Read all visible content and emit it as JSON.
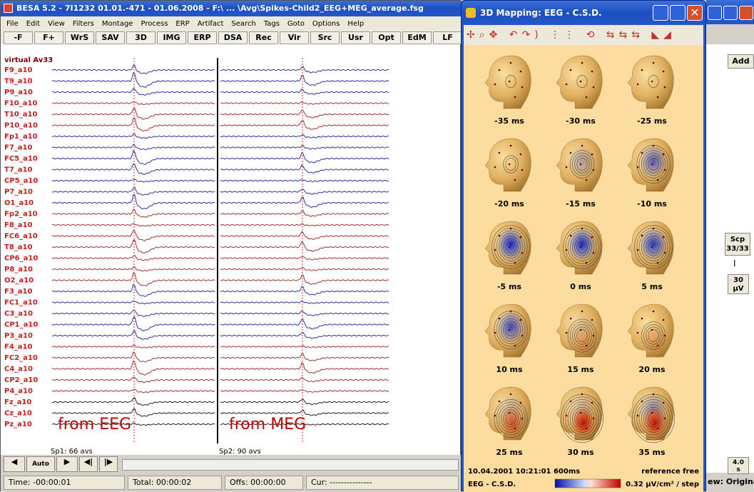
{
  "main_window": {
    "title": "BESA 5.2 - 7I1232 01.01.-471 - 01.06.2008 - F:\\ ... \\Avg\\Spikes-Child2_EEG+MEG_average.fsg",
    "menu": [
      "File",
      "Edit",
      "View",
      "Filters",
      "Montage",
      "Process",
      "ERP",
      "Artifact",
      "Search",
      "Tags",
      "Goto",
      "Options",
      "Help"
    ],
    "toolbar": [
      "-F",
      "F+",
      "WrS",
      "SAV",
      "3D",
      "IMG",
      "ERP",
      "DSA",
      "Rec",
      "Vir",
      "Src",
      "Usr",
      "Opt",
      "EdM",
      "LF"
    ],
    "montage_label": "virtual Av33",
    "channels": [
      {
        "name": "F9_a10",
        "color": "#3030a0"
      },
      {
        "name": "T9_a10",
        "color": "#3030a0"
      },
      {
        "name": "P9_a10",
        "color": "#3030a0"
      },
      {
        "name": "F10_a10",
        "color": "#a03030"
      },
      {
        "name": "T10_a10",
        "color": "#a03030"
      },
      {
        "name": "P10_a10",
        "color": "#a03030"
      },
      {
        "name": "Fp1_a10",
        "color": "#3030a0"
      },
      {
        "name": "F7_a10",
        "color": "#3030a0"
      },
      {
        "name": "FC5_a10",
        "color": "#3030a0"
      },
      {
        "name": "T7_a10",
        "color": "#3030a0"
      },
      {
        "name": "CP5_a10",
        "color": "#3030a0"
      },
      {
        "name": "P7_a10",
        "color": "#3030a0"
      },
      {
        "name": "O1_a10",
        "color": "#3030a0"
      },
      {
        "name": "Fp2_a10",
        "color": "#a03030"
      },
      {
        "name": "F8_a10",
        "color": "#a03030"
      },
      {
        "name": "FC6_a10",
        "color": "#a03030"
      },
      {
        "name": "T8_a10",
        "color": "#a03030"
      },
      {
        "name": "CP6_a10",
        "color": "#a03030"
      },
      {
        "name": "P8_a10",
        "color": "#a03030"
      },
      {
        "name": "O2_a10",
        "color": "#a03030"
      },
      {
        "name": "F3_a10",
        "color": "#3030a0"
      },
      {
        "name": "FC1_a10",
        "color": "#3030a0"
      },
      {
        "name": "C3_a10",
        "color": "#3030a0"
      },
      {
        "name": "CP1_a10",
        "color": "#3030a0"
      },
      {
        "name": "P3_a10",
        "color": "#3030a0"
      },
      {
        "name": "F4_a10",
        "color": "#a03030"
      },
      {
        "name": "FC2_a10",
        "color": "#a03030"
      },
      {
        "name": "C4_a10",
        "color": "#a03030"
      },
      {
        "name": "CP2_a10",
        "color": "#a03030"
      },
      {
        "name": "P4_a10",
        "color": "#a03030"
      },
      {
        "name": "Fz_a10",
        "color": "#202020"
      },
      {
        "name": "Cz_a10",
        "color": "#202020"
      },
      {
        "name": "Pz_a10",
        "color": "#202020"
      }
    ],
    "annotations": [
      "from EEG",
      "from MEG"
    ],
    "segments": [
      "Sp1: 66 avs",
      "Sp2: 90 avs"
    ],
    "nav_button": "Auto",
    "status": [
      "Time: -00:00:01",
      "Total: 00:00:02",
      "Offs: 00:00:00",
      "Cur: ---------------"
    ]
  },
  "side_panel": {
    "add": "Add",
    "scp": [
      "Scp",
      "33/33"
    ],
    "amp": [
      "30",
      "µV"
    ],
    "time": [
      "4.0",
      "s"
    ],
    "view_label": "ew: Origina"
  },
  "mapping_window": {
    "title": "3D Mapping: EEG - C.S.D.",
    "maps": [
      "-35 ms",
      "-30 ms",
      "-25 ms",
      "-20 ms",
      "-15 ms",
      "-10 ms",
      "-5 ms",
      "0 ms",
      "5 ms",
      "10 ms",
      "15 ms",
      "20 ms",
      "25 ms",
      "30 ms",
      "35 ms"
    ],
    "timestamp": "10.04.2001 10:21:01 600ms",
    "reference": "reference free",
    "method": "EEG - C.S.D.",
    "scale": "0.32 µV/cm² / step"
  }
}
